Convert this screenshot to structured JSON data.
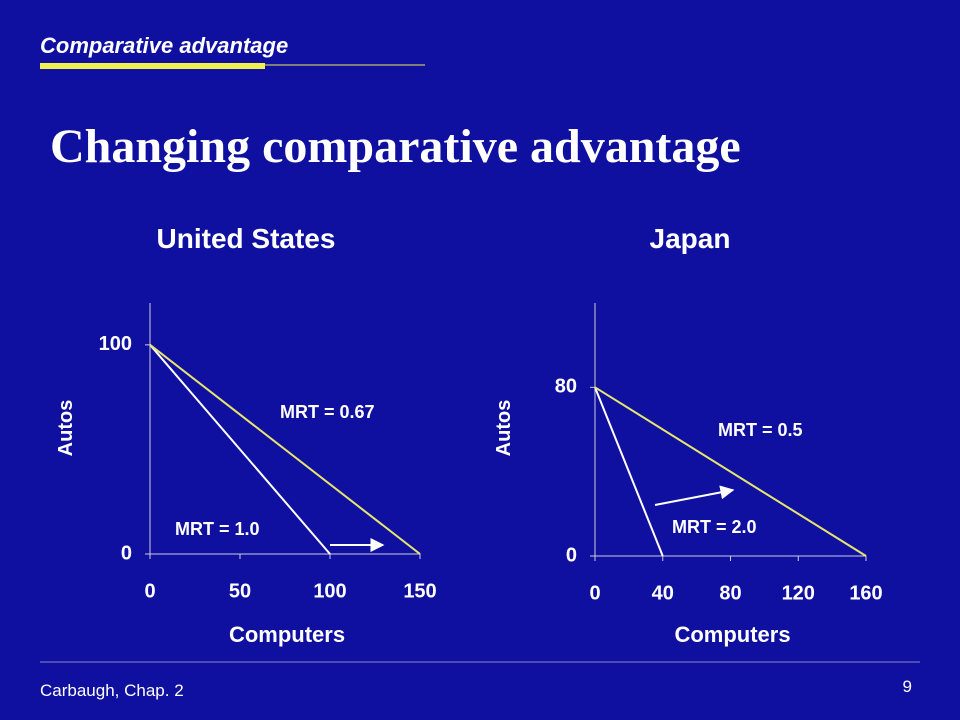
{
  "header": {
    "section": "Comparative advantage",
    "title": "Changing comparative advantage"
  },
  "footer": {
    "source": "Carbaugh, Chap. 2",
    "page": "9"
  },
  "chart_data": [
    {
      "type": "line",
      "title": "United States",
      "x_label": "Computers",
      "y_label": "Autos",
      "xlim": [
        0,
        150
      ],
      "ylim": [
        0,
        120
      ],
      "xticks": [
        0,
        50,
        100,
        150
      ],
      "yticks": [
        0,
        100
      ],
      "series": [
        {
          "color": "#ffffff",
          "x": [
            0,
            100
          ],
          "values": [
            100,
            0
          ]
        },
        {
          "color": "#e6e66e",
          "x": [
            0,
            150
          ],
          "values": [
            100,
            0
          ]
        }
      ],
      "annotations": [
        "MRT = 0.67",
        "MRT = 1.0"
      ]
    },
    {
      "type": "line",
      "title": "Japan",
      "x_label": "Computers",
      "y_label": "Autos",
      "xlim": [
        0,
        160
      ],
      "ylim": [
        0,
        120
      ],
      "xticks": [
        0,
        40,
        80,
        120,
        160
      ],
      "yticks": [
        0,
        80
      ],
      "series": [
        {
          "color": "#ffffff",
          "x": [
            0,
            40
          ],
          "values": [
            80,
            0
          ]
        },
        {
          "color": "#e6e66e",
          "x": [
            0,
            160
          ],
          "values": [
            80,
            0
          ]
        }
      ],
      "annotations": [
        "MRT = 0.5",
        "MRT = 2.0"
      ]
    }
  ]
}
